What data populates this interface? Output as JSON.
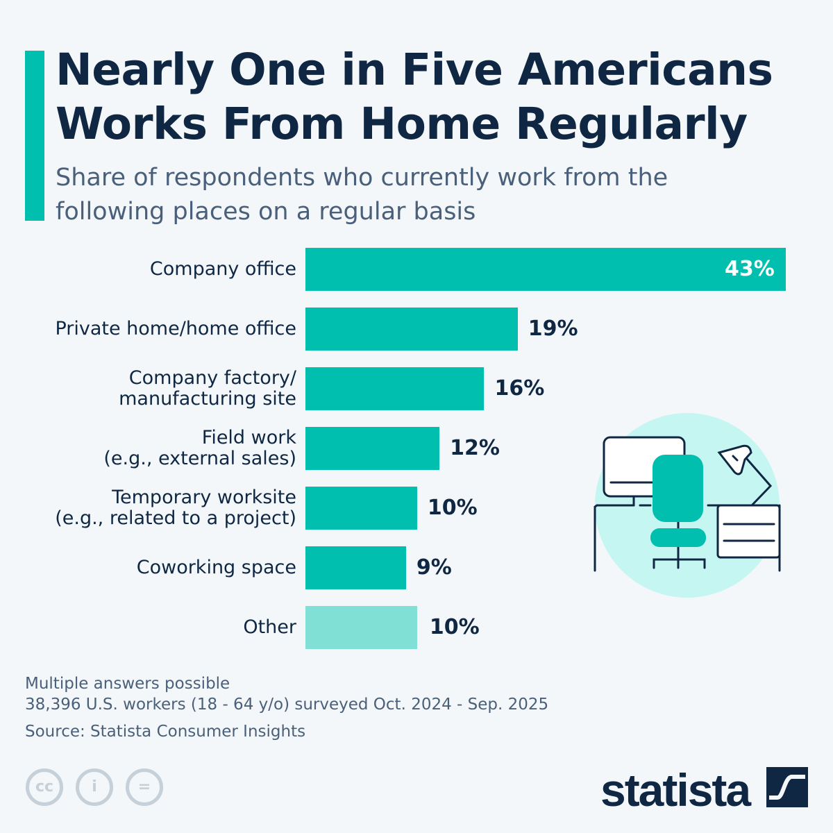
{
  "header": {
    "title": "Nearly One in Five Americans Works From Home Regularly",
    "subtitle": "Share of respondents who currently work from the following places on a regular basis"
  },
  "chart_data": {
    "type": "bar",
    "orientation": "horizontal",
    "categories": [
      "Company office",
      "Private home/home office",
      "Company factory/\nmanufacturing site",
      "Field work\n(e.g., external sales)",
      "Temporary worksite\n(e.g., related to a project)",
      "Coworking space",
      "Other"
    ],
    "values": [
      43,
      19,
      16,
      12,
      10,
      9,
      10
    ],
    "value_labels": [
      "43%",
      "19%",
      "16%",
      "12%",
      "10%",
      "9%",
      "10%"
    ],
    "unit": "%",
    "colors": {
      "main": "#00bfae",
      "other": "#80e0d6"
    },
    "grid": false
  },
  "footer": {
    "note1": "Multiple answers possible",
    "note2": "38,396 U.S. workers (18 - 64 y/o) surveyed Oct. 2024 - Sep. 2025",
    "source": "Source: Statista Consumer Insights",
    "logo": "statista",
    "license_icons": [
      "cc-icon",
      "attribution-icon",
      "no-derivatives-icon"
    ]
  },
  "colors": {
    "accent": "#00bfae",
    "title": "#0f2742",
    "subtitle": "#4a607a",
    "background": "#f4f7fa"
  }
}
